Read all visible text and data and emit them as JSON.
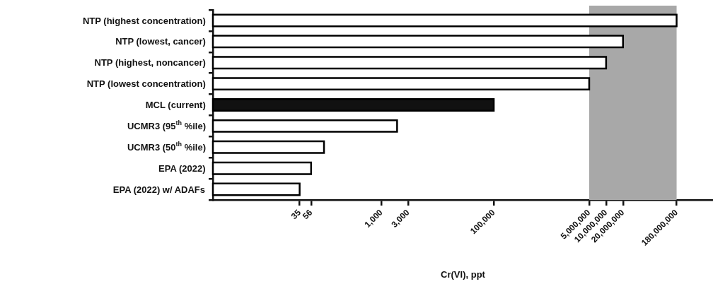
{
  "chart_data": {
    "type": "bar",
    "orientation": "horizontal",
    "xlabel": "Cr(VI), ppt",
    "categories": [
      "NTP (highest concentration)",
      "NTP (lowest, cancer)",
      "NTP (highest, noncancer)",
      "NTP (lowest concentration)",
      "MCL (current)",
      "UCMR3 (95$^{th}$ %ile)",
      "UCMR3 (50$^{th}$ %ile)",
      "EPA (2022)",
      "EPA (2022) w/ ADAFs"
    ],
    "values": [
      180000000,
      20000000,
      10000000,
      5000000,
      100000,
      1900,
      95,
      56,
      35
    ],
    "colors": [
      "#ffffff",
      "#ffffff",
      "#ffffff",
      "#ffffff",
      "#111111",
      "#ffffff",
      "#ffffff",
      "#ffffff",
      "#ffffff"
    ],
    "log": "x",
    "xlim": [
      1,
      800000000
    ],
    "xticks": [
      35,
      56,
      {
        "value": 1000,
        "label": "1,000"
      },
      {
        "value": 3000,
        "label": "3,000"
      },
      {
        "value": 100000,
        "label": "100,000"
      },
      {
        "value": 5000000,
        "label": "5,000,000"
      },
      {
        "value": 10000000,
        "label": "10,000,000"
      },
      {
        "value": 20000000,
        "label": "20,000,000"
      },
      {
        "value": 180000000,
        "label": "180,000,000"
      }
    ],
    "bands": [
      {
        "axis": "x",
        "from": 5000000,
        "to": 180000000,
        "color": "#a8a8a8"
      }
    ],
    "grid": false,
    "legend": false
  }
}
